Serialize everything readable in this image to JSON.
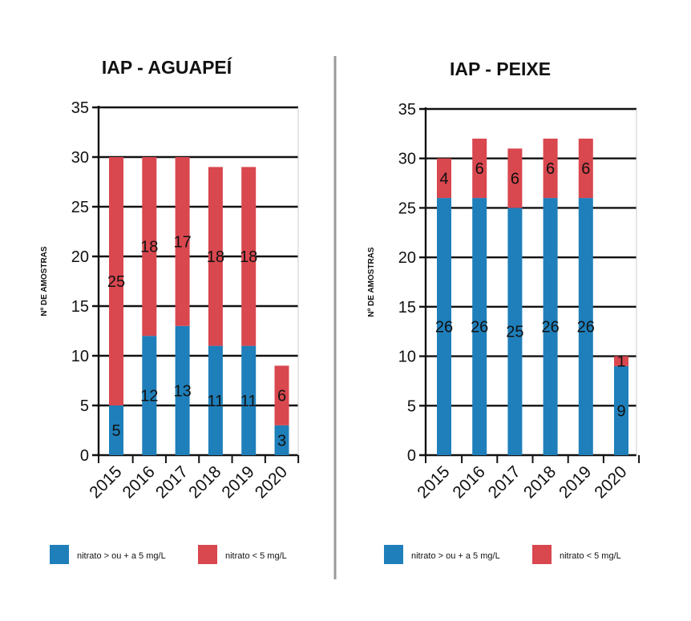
{
  "colors": {
    "above": "#1f7fba",
    "below": "#d9474f",
    "grid": "#111111",
    "divider": "#999999"
  },
  "chart_data": [
    {
      "type": "bar",
      "stacked": true,
      "title": "IAP - AGUAPEÍ",
      "ylabel": "Nº DE AMOSTRAS",
      "xlabel": "",
      "ylim": [
        0,
        35
      ],
      "yticks": [
        "0",
        "5",
        "10",
        "15",
        "20",
        "25",
        "30",
        "35"
      ],
      "categories": [
        "2015",
        "2016",
        "2017",
        "2018",
        "2019",
        "2020"
      ],
      "series": [
        {
          "name": "nitrato > ou + a 5 mg/L",
          "values": [
            5,
            12,
            13,
            11,
            11,
            3
          ]
        },
        {
          "name": "nitrato < 5 mg/L",
          "values": [
            25,
            18,
            17,
            18,
            18,
            6
          ]
        }
      ]
    },
    {
      "type": "bar",
      "stacked": true,
      "title": "IAP - PEIXE",
      "ylabel": "Nº DE AMOSTRAS",
      "xlabel": "",
      "ylim": [
        0,
        35
      ],
      "yticks": [
        "0",
        "5",
        "10",
        "15",
        "20",
        "25",
        "30",
        "35"
      ],
      "categories": [
        "2015",
        "2016",
        "2017",
        "2018",
        "2019",
        "2020"
      ],
      "series": [
        {
          "name": "nitrato > ou + a 5 mg/L",
          "values": [
            26,
            26,
            25,
            26,
            26,
            9
          ]
        },
        {
          "name": "nitrato < 5 mg/L",
          "values": [
            4,
            6,
            6,
            6,
            6,
            1
          ]
        }
      ]
    }
  ]
}
